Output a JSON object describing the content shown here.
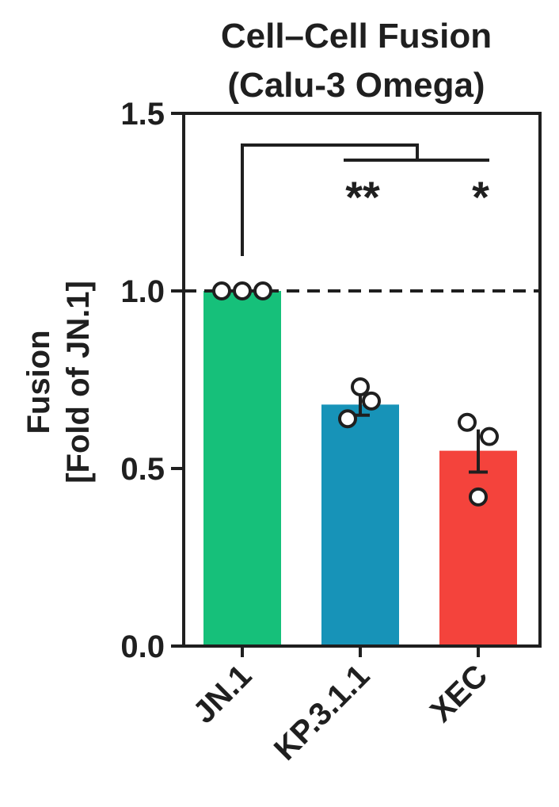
{
  "chart_data": {
    "type": "bar",
    "title_lines": [
      "Cell–Cell Fusion",
      "(Calu-3 Omega)"
    ],
    "ylabel_lines": [
      "Fusion",
      "[Fold of JN.1]"
    ],
    "xlabel": "",
    "categories": [
      "JN.1",
      "KP.3.1.1",
      "XEC"
    ],
    "values": [
      1.0,
      0.68,
      0.55
    ],
    "error": [
      0.0,
      0.03,
      0.06
    ],
    "points": [
      [
        1.0,
        1.0,
        1.0
      ],
      [
        0.64,
        0.73,
        0.69
      ],
      [
        0.42,
        0.59,
        0.63
      ]
    ],
    "colors": [
      "#16c07a",
      "#1793b8",
      "#f4433c"
    ],
    "ylim": [
      0,
      1.5
    ],
    "yticks": [
      "0.0",
      "0.5",
      "1.0",
      "1.5"
    ],
    "reference_line": 1.0,
    "significance": [
      "**",
      "*"
    ],
    "grid": false
  }
}
